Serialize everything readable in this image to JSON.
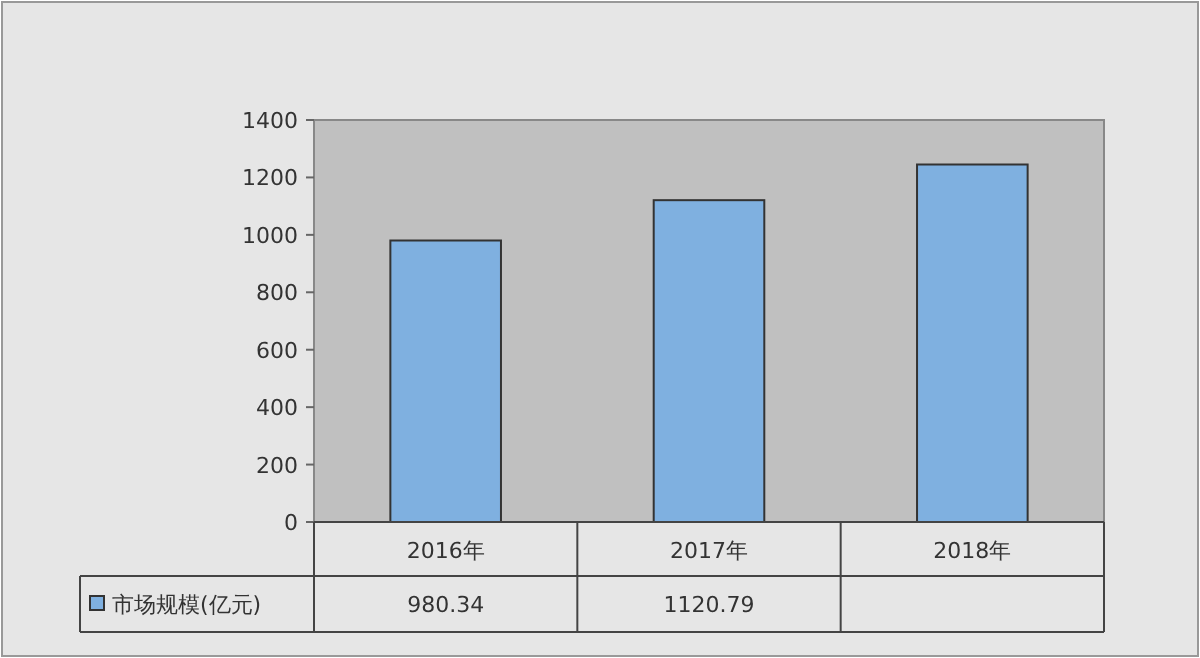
{
  "chart_data": {
    "type": "bar",
    "categories": [
      "2016年",
      "2017年",
      "2018年"
    ],
    "series": [
      {
        "name": "市场规模(亿元)",
        "color": "#7fb0e0",
        "values": [
          980.34,
          1120.79,
          1245
        ],
        "value_labels": [
          "980.34",
          "1120.79",
          null
        ]
      }
    ],
    "ylim": [
      0,
      1400
    ],
    "yticks": [
      0,
      200,
      400,
      600,
      800,
      1000,
      1200,
      1400
    ],
    "legend": "bottom"
  }
}
